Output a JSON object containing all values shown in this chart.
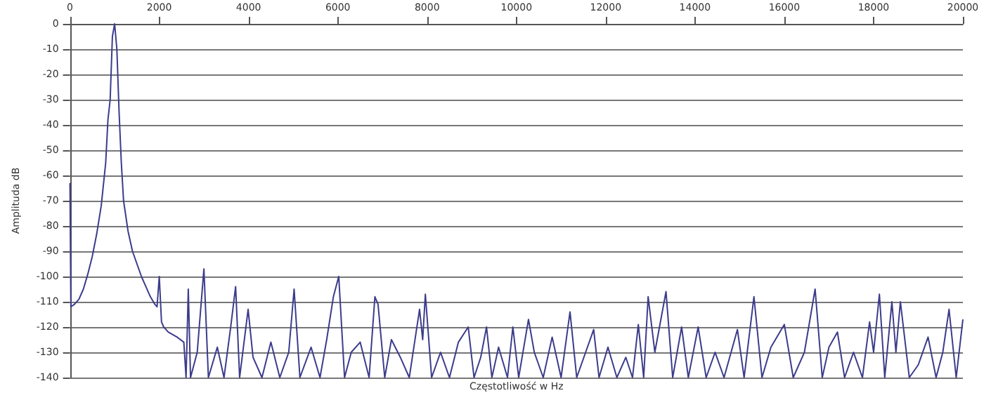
{
  "chart_data": {
    "type": "line",
    "xlabel": "Częstotliwość w Hz",
    "ylabel": "Amplituda dB",
    "x": [
      0,
      20,
      100,
      200,
      300,
      400,
      500,
      600,
      700,
      800,
      850,
      900,
      950,
      1000,
      1050,
      1100,
      1150,
      1200,
      1300,
      1400,
      1500,
      1600,
      1700,
      1800,
      1900,
      1950,
      2000,
      2050,
      2100,
      2200,
      2400,
      2550,
      2600,
      2650,
      2700,
      2850,
      3000,
      3100,
      3300,
      3450,
      3600,
      3710,
      3800,
      3990,
      4100,
      4300,
      4500,
      4700,
      4900,
      5020,
      5150,
      5400,
      5600,
      5750,
      5900,
      6020,
      6150,
      6300,
      6500,
      6700,
      6830,
      6900,
      7050,
      7200,
      7400,
      7600,
      7830,
      7900,
      7960,
      8100,
      8300,
      8500,
      8700,
      8920,
      9050,
      9200,
      9330,
      9450,
      9600,
      9800,
      9920,
      10050,
      10270,
      10400,
      10600,
      10800,
      11000,
      11200,
      11350,
      11550,
      11730,
      11850,
      12050,
      12250,
      12450,
      12600,
      12730,
      12850,
      12950,
      13100,
      13350,
      13500,
      13700,
      13850,
      14070,
      14250,
      14450,
      14650,
      14950,
      15100,
      15320,
      15500,
      15700,
      16000,
      16200,
      16450,
      16690,
      16850,
      17000,
      17190,
      17350,
      17550,
      17750,
      17910,
      18000,
      18130,
      18250,
      18410,
      18500,
      18600,
      18800,
      19000,
      19220,
      19400,
      19550,
      19690,
      19850,
      20000
    ],
    "series": [
      {
        "color": "#3c3c8c",
        "values": [
          -63,
          -112,
          -111,
          -109,
          -105,
          -99,
          -92,
          -83,
          -72,
          -55,
          -38,
          -30,
          -5,
          0,
          -10,
          -35,
          -55,
          -70,
          -82,
          -90,
          -95,
          -100,
          -104,
          -108,
          -111,
          -112,
          -100,
          -118,
          -120,
          -122,
          -124,
          -126,
          -140,
          -105,
          -140,
          -130,
          -97,
          -140,
          -128,
          -140,
          -120,
          -104,
          -140,
          -113,
          -132,
          -140,
          -126,
          -140,
          -130,
          -105,
          -140,
          -128,
          -140,
          -125,
          -108,
          -100,
          -140,
          -130,
          -126,
          -140,
          -108,
          -111,
          -140,
          -125,
          -132,
          -140,
          -113,
          -125,
          -107,
          -140,
          -130,
          -140,
          -126,
          -120,
          -140,
          -132,
          -120,
          -140,
          -128,
          -140,
          -120,
          -140,
          -117,
          -130,
          -140,
          -124,
          -140,
          -114,
          -140,
          -130,
          -121,
          -140,
          -128,
          -140,
          -132,
          -140,
          -119,
          -140,
          -108,
          -130,
          -106,
          -140,
          -120,
          -140,
          -120,
          -140,
          -130,
          -140,
          -121,
          -140,
          -108,
          -140,
          -128,
          -119,
          -140,
          -130,
          -105,
          -140,
          -128,
          -122,
          -140,
          -130,
          -140,
          -118,
          -130,
          -107,
          -140,
          -110,
          -130,
          -110,
          -140,
          -135,
          -124,
          -140,
          -130,
          -113,
          -140,
          -117
        ]
      }
    ],
    "xlim": [
      0,
      20000
    ],
    "xticks": [
      0,
      2000,
      4000,
      6000,
      8000,
      10000,
      12000,
      14000,
      16000,
      18000,
      20000
    ],
    "ylim": [
      -140,
      0
    ],
    "yticks": [
      0,
      -10,
      -20,
      -30,
      -40,
      -50,
      -60,
      -70,
      -80,
      -90,
      -100,
      -110,
      -120,
      -130,
      -140
    ],
    "grid": "y",
    "marker": "none",
    "line_style": "solid"
  }
}
